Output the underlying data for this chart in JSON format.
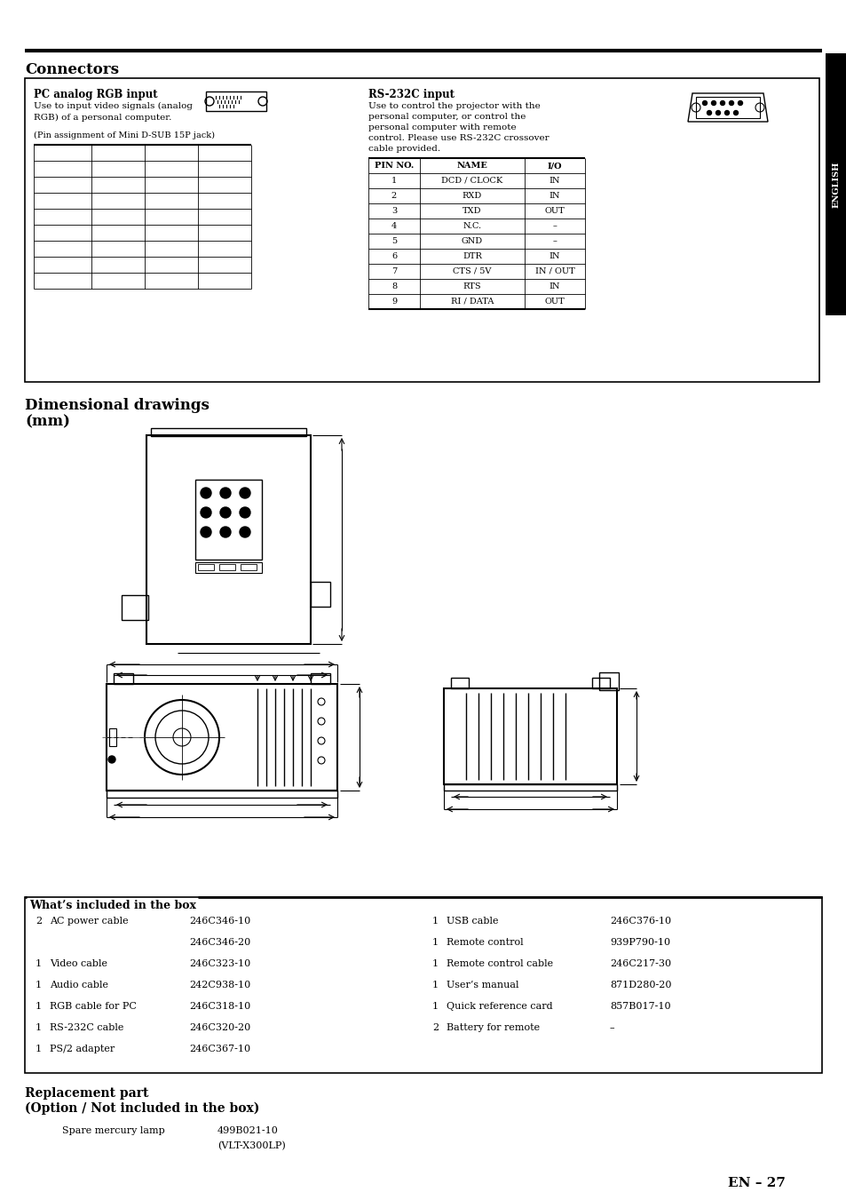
{
  "page_bg": "#ffffff",
  "section_connectors": "Connectors",
  "section_dim": "Dimensional drawings",
  "section_dim2": "(mm)",
  "box_title_pc": "PC analog RGB input",
  "box_text_pc1": "Use to input video signals (analog",
  "box_text_pc2": "RGB) of a personal computer.",
  "box_text_pc3": "(Pin assignment of Mini D-SUB 15P jack)",
  "box_title_rs": "RS-232C input",
  "box_text_rs1": "Use to control the projector with the",
  "box_text_rs2": "personal computer, or control the",
  "box_text_rs3": "personal computer with remote",
  "box_text_rs4": "control. Please use RS-232C crossover",
  "box_text_rs5": "cable provided.",
  "rs_table_headers": [
    "PIN NO.",
    "NAME",
    "I/O"
  ],
  "rs_table_rows": [
    [
      "1",
      "DCD / CLOCK",
      "IN"
    ],
    [
      "2",
      "RXD",
      "IN"
    ],
    [
      "3",
      "TXD",
      "OUT"
    ],
    [
      "4",
      "N.C.",
      "–"
    ],
    [
      "5",
      "GND",
      "–"
    ],
    [
      "6",
      "DTR",
      "IN"
    ],
    [
      "7",
      "CTS / 5V",
      "IN / OUT"
    ],
    [
      "8",
      "RTS",
      "IN"
    ],
    [
      "9",
      "RI / DATA",
      "OUT"
    ]
  ],
  "whats_included_title": "What’s included in the box",
  "included_left": [
    [
      "2",
      "AC power cable",
      "246C346-10"
    ],
    [
      "",
      "",
      "246C346-20"
    ],
    [
      "1",
      "Video cable",
      "246C323-10"
    ],
    [
      "1",
      "Audio cable",
      "242C938-10"
    ],
    [
      "1",
      "RGB cable for PC",
      "246C318-10"
    ],
    [
      "1",
      "RS-232C cable",
      "246C320-20"
    ],
    [
      "1",
      "PS/2 adapter",
      "246C367-10"
    ]
  ],
  "included_right": [
    [
      "1",
      "USB cable",
      "246C376-10"
    ],
    [
      "1",
      "Remote control",
      "939P790-10"
    ],
    [
      "1",
      "Remote control cable",
      "246C217-30"
    ],
    [
      "1",
      "User’s manual",
      "871D280-20"
    ],
    [
      "1",
      "Quick reference card",
      "857B017-10"
    ],
    [
      "2",
      "Battery for remote",
      "–"
    ],
    [
      "",
      "",
      ""
    ]
  ],
  "replacement_title": "Replacement part",
  "replacement_subtitle": "(Option / Not included in the box)",
  "replacement_item": "Spare mercury lamp",
  "replacement_code1": "499B021-10",
  "replacement_code2": "(VLT-X300LP)",
  "page_number": "EN – 27",
  "english_label": "ENGLISH"
}
